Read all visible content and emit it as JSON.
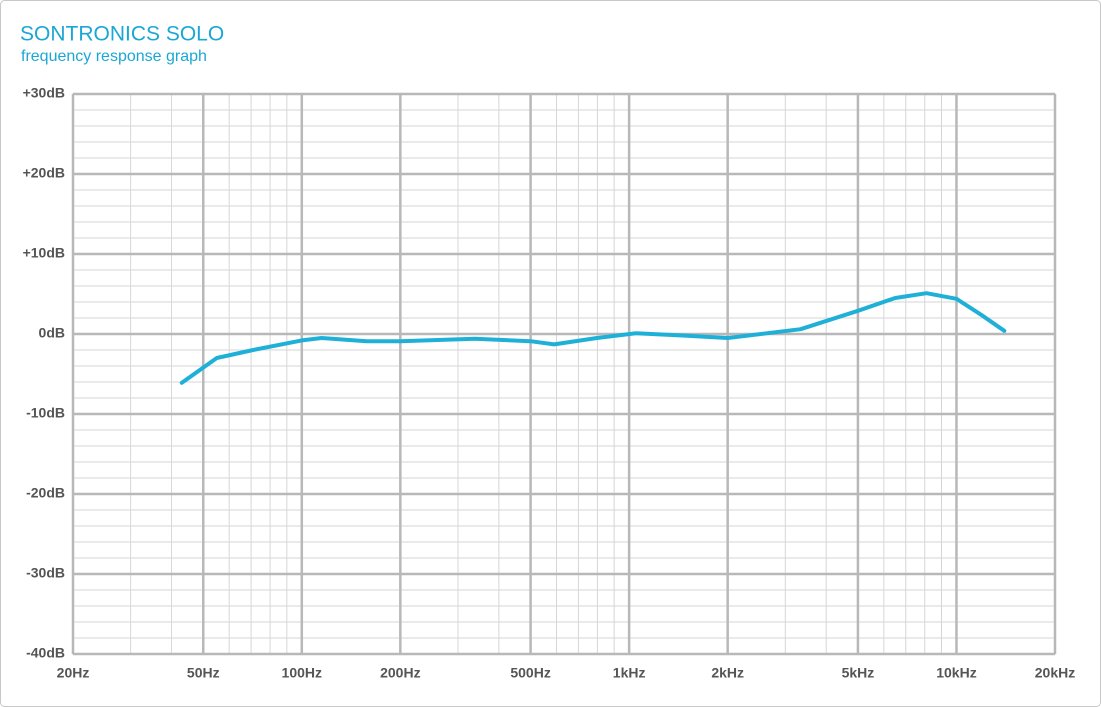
{
  "chart_data": {
    "type": "line",
    "title": "SONTRONICS SOLO",
    "subtitle": "frequency response graph",
    "x_scale": "log",
    "grid": true,
    "xlim": [
      20,
      20000
    ],
    "xticks": [
      {
        "value": 20,
        "label": "20Hz"
      },
      {
        "value": 50,
        "label": "50Hz"
      },
      {
        "value": 100,
        "label": "100Hz"
      },
      {
        "value": 200,
        "label": "200Hz"
      },
      {
        "value": 500,
        "label": "500Hz"
      },
      {
        "value": 1000,
        "label": "1kHz"
      },
      {
        "value": 2000,
        "label": "2kHz"
      },
      {
        "value": 5000,
        "label": "5kHz"
      },
      {
        "value": 10000,
        "label": "10kHz"
      },
      {
        "value": 20000,
        "label": "20kHz"
      }
    ],
    "ylim": [
      -40,
      30
    ],
    "yticks": [
      {
        "value": -40,
        "label": "-40dB"
      },
      {
        "value": -30,
        "label": "-30dB"
      },
      {
        "value": -20,
        "label": "-20dB"
      },
      {
        "value": -10,
        "label": "-10dB"
      },
      {
        "value": 0,
        "label": "0dB"
      },
      {
        "value": 10,
        "label": "+10dB"
      },
      {
        "value": 20,
        "label": "+20dB"
      },
      {
        "value": 30,
        "label": "+30dB"
      }
    ],
    "x": [
      43,
      55,
      71,
      100,
      115,
      158,
      200,
      338,
      500,
      590,
      797,
      1050,
      1480,
      2000,
      3340,
      5000,
      6500,
      8100,
      10000,
      11900,
      14000
    ],
    "series": [
      {
        "color": "#1fb0d8",
        "values": [
          -6.1,
          -3,
          -2,
          -0.8,
          -0.5,
          -0.9,
          -0.9,
          -0.6,
          -0.9,
          -1.3,
          -0.5,
          0.1,
          -0.2,
          -0.5,
          0.6,
          2.9,
          4.5,
          5.1,
          4.4,
          2.4,
          0.4
        ]
      }
    ]
  }
}
